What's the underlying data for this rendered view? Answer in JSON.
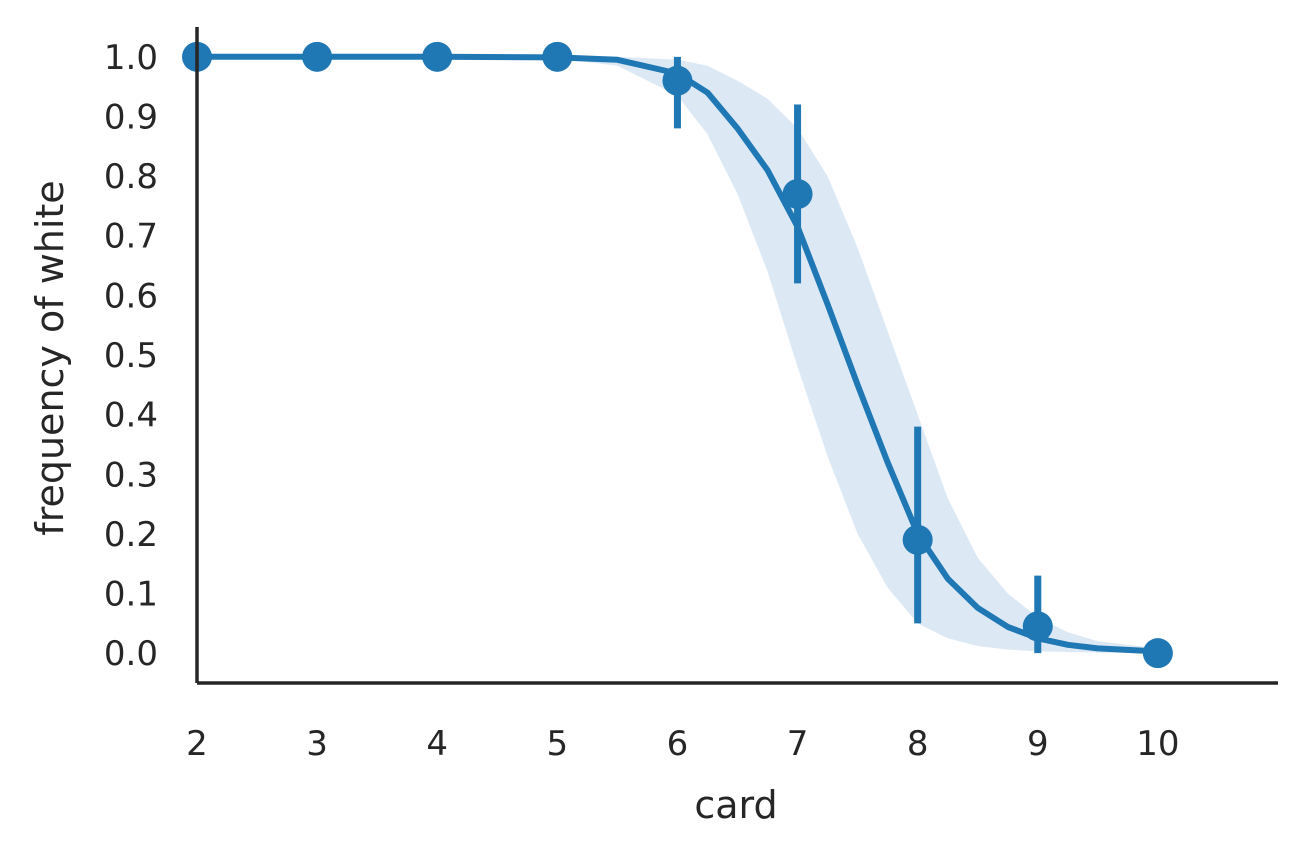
{
  "chart_data": {
    "type": "scatter",
    "title": "",
    "xlabel": "card",
    "ylabel": "frequency of white",
    "xlim": [
      2,
      11
    ],
    "ylim": [
      -0.05,
      1.05
    ],
    "x_ticks": [
      2,
      3,
      4,
      5,
      6,
      7,
      8,
      9,
      10
    ],
    "y_ticks": [
      "0.0",
      "0.1",
      "0.2",
      "0.3",
      "0.4",
      "0.5",
      "0.6",
      "0.7",
      "0.8",
      "0.9",
      "1.0"
    ],
    "grid": false,
    "legend": "none",
    "color": "#1f77b4",
    "band_color": "#dce9f5",
    "points": [
      {
        "x": 2,
        "y": 1.0,
        "err_low": 1.0,
        "err_high": 1.0
      },
      {
        "x": 3,
        "y": 1.0,
        "err_low": 1.0,
        "err_high": 1.0
      },
      {
        "x": 4,
        "y": 1.0,
        "err_low": 1.0,
        "err_high": 1.0
      },
      {
        "x": 5,
        "y": 1.0,
        "err_low": 1.0,
        "err_high": 1.0
      },
      {
        "x": 6,
        "y": 0.96,
        "err_low": 0.88,
        "err_high": 1.0
      },
      {
        "x": 7,
        "y": 0.77,
        "err_low": 0.62,
        "err_high": 0.92
      },
      {
        "x": 8,
        "y": 0.19,
        "err_low": 0.05,
        "err_high": 0.38
      },
      {
        "x": 9,
        "y": 0.045,
        "err_low": 0.0,
        "err_high": 0.13
      },
      {
        "x": 10,
        "y": 0.0,
        "err_low": 0.0,
        "err_high": 0.0
      }
    ],
    "fit": {
      "type": "logistic",
      "x": [
        2.0,
        3.0,
        4.0,
        5.0,
        5.5,
        6.0,
        6.25,
        6.5,
        6.75,
        7.0,
        7.25,
        7.5,
        7.75,
        8.0,
        8.25,
        8.5,
        8.75,
        9.0,
        9.25,
        9.5,
        10.0
      ],
      "y": [
        1.0,
        1.0,
        1.0,
        0.999,
        0.995,
        0.972,
        0.94,
        0.88,
        0.81,
        0.715,
        0.585,
        0.45,
        0.32,
        0.2,
        0.125,
        0.076,
        0.044,
        0.025,
        0.014,
        0.008,
        0.003
      ],
      "ci_low": [
        1.0,
        1.0,
        1.0,
        0.997,
        0.985,
        0.935,
        0.87,
        0.77,
        0.64,
        0.48,
        0.33,
        0.2,
        0.11,
        0.05,
        0.025,
        0.012,
        0.006,
        0.003,
        0.002,
        0.001,
        0.0
      ],
      "ci_high": [
        1.0,
        1.0,
        1.0,
        1.0,
        1.0,
        0.995,
        0.985,
        0.96,
        0.93,
        0.88,
        0.8,
        0.68,
        0.54,
        0.4,
        0.26,
        0.16,
        0.1,
        0.06,
        0.035,
        0.02,
        0.008
      ]
    }
  }
}
